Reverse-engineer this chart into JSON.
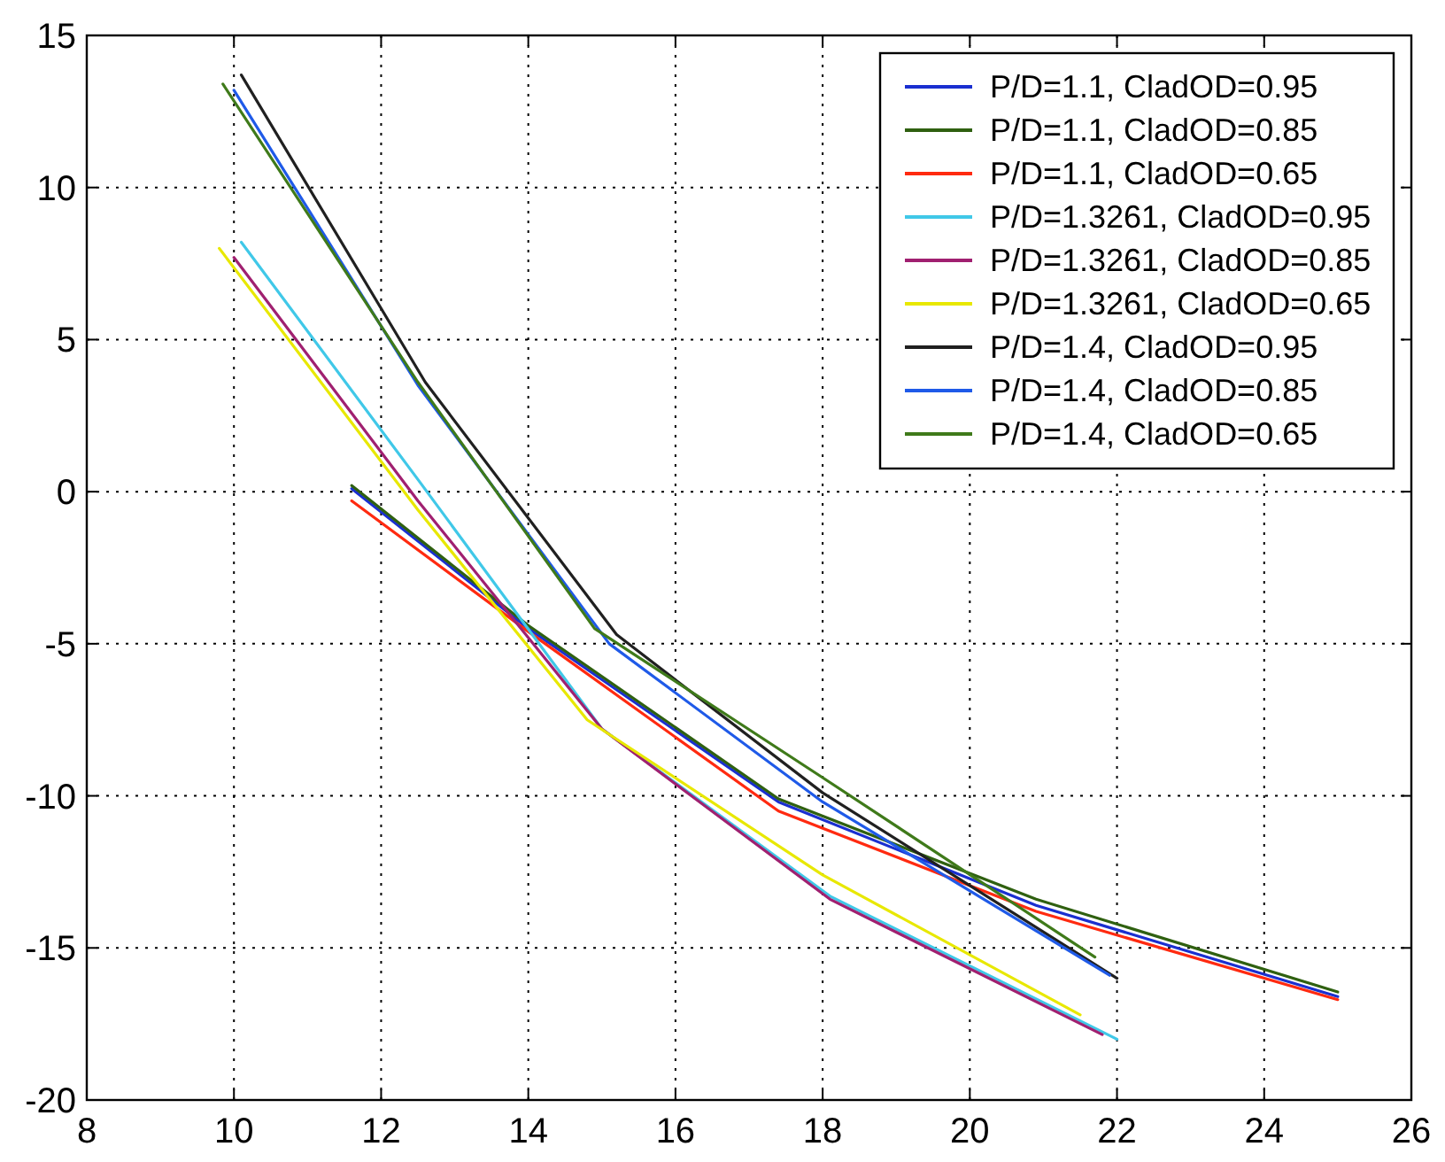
{
  "chart_data": {
    "type": "line",
    "xlim": [
      8,
      26
    ],
    "ylim": [
      -20,
      15
    ],
    "xticks": [
      8,
      10,
      12,
      14,
      16,
      18,
      20,
      22,
      24,
      26
    ],
    "yticks": [
      -20,
      -15,
      -10,
      -5,
      0,
      5,
      10,
      15
    ],
    "grid": true,
    "legend": "top right",
    "line_style": "solid",
    "marker": "none",
    "series": [
      {
        "name": "P/D=1.1, CladOD=0.95",
        "color": "#1a2fd0",
        "x": [
          11.6,
          14,
          17.4,
          20.9,
          25
        ],
        "values": [
          0.1,
          -4.5,
          -10.2,
          -13.6,
          -16.6
        ]
      },
      {
        "name": "P/D=1.1, CladOD=0.85",
        "color": "#2f6010",
        "x": [
          11.6,
          14,
          17.4,
          20.9,
          25
        ],
        "values": [
          0.2,
          -4.4,
          -10.1,
          -13.4,
          -16.45
        ]
      },
      {
        "name": "P/D=1.1, CladOD=0.65",
        "color": "#ff2a10",
        "x": [
          11.6,
          14,
          17.4,
          20.9,
          25
        ],
        "values": [
          -0.3,
          -4.6,
          -10.5,
          -13.8,
          -16.7
        ]
      },
      {
        "name": "P/D=1.3261, CladOD=0.95",
        "color": "#40c8e8",
        "x": [
          10.1,
          12.5,
          15,
          18.1,
          22
        ],
        "values": [
          8.2,
          0.4,
          -7.8,
          -13.3,
          -18
        ]
      },
      {
        "name": "P/D=1.3261, CladOD=0.85",
        "color": "#a02070",
        "x": [
          10,
          12.5,
          15,
          18.1,
          21.8
        ],
        "values": [
          7.7,
          -0.3,
          -7.8,
          -13.4,
          -17.85
        ]
      },
      {
        "name": "P/D=1.3261, CladOD=0.65",
        "color": "#e8e800",
        "x": [
          9.8,
          12.5,
          14.8,
          18,
          21.5
        ],
        "values": [
          8,
          -0.6,
          -7.5,
          -12.6,
          -17.2
        ]
      },
      {
        "name": "P/D=1.4, CladOD=0.95",
        "color": "#202020",
        "x": [
          10.1,
          12.6,
          15.2,
          18,
          22
        ],
        "values": [
          13.7,
          3.6,
          -4.7,
          -9.9,
          -16
        ]
      },
      {
        "name": "P/D=1.4, CladOD=0.85",
        "color": "#1f5ae8",
        "x": [
          10,
          12.5,
          15.1,
          18,
          21.9
        ],
        "values": [
          13.2,
          3.5,
          -5,
          -10.2,
          -15.9
        ]
      },
      {
        "name": "P/D=1.4, CladOD=0.65",
        "color": "#3f7a1a",
        "x": [
          9.85,
          12.5,
          14.9,
          18,
          21.7
        ],
        "values": [
          13.4,
          3.6,
          -4.5,
          -9.4,
          -15.3
        ]
      }
    ]
  }
}
